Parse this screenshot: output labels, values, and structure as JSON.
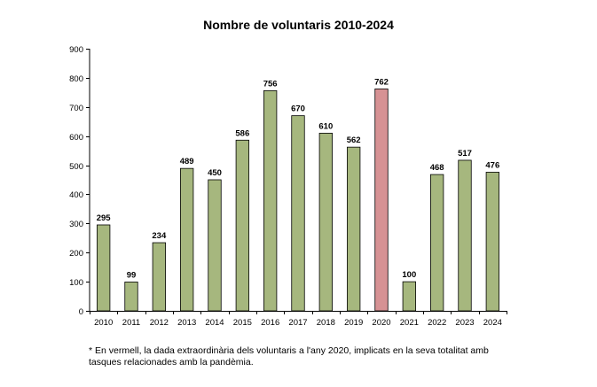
{
  "chart_data": {
    "type": "bar",
    "title": "Nombre de voluntaris 2010-2024",
    "xlabel": "",
    "ylabel": "",
    "categories": [
      "2010",
      "2011",
      "2012",
      "2013",
      "2014",
      "2015",
      "2016",
      "2017",
      "2018",
      "2019",
      "2020",
      "2021",
      "2022",
      "2023",
      "2024"
    ],
    "values": [
      295,
      99,
      234,
      489,
      450,
      586,
      756,
      670,
      610,
      562,
      762,
      100,
      468,
      517,
      476
    ],
    "highlight": [
      "2020"
    ],
    "ylim": [
      0,
      900
    ],
    "yticks": [
      0,
      100,
      200,
      300,
      400,
      500,
      600,
      700,
      800,
      900
    ],
    "grid": false,
    "legend": "none",
    "colors": {
      "bar": "#a6b77e",
      "highlight": "#d69294",
      "outline": "#000000"
    }
  },
  "footnote": "* En vermell, la dada extraordinària dels voluntaris a l'any 2020, implicats en la seva totalitat amb tasques relacionades amb la pandèmia."
}
